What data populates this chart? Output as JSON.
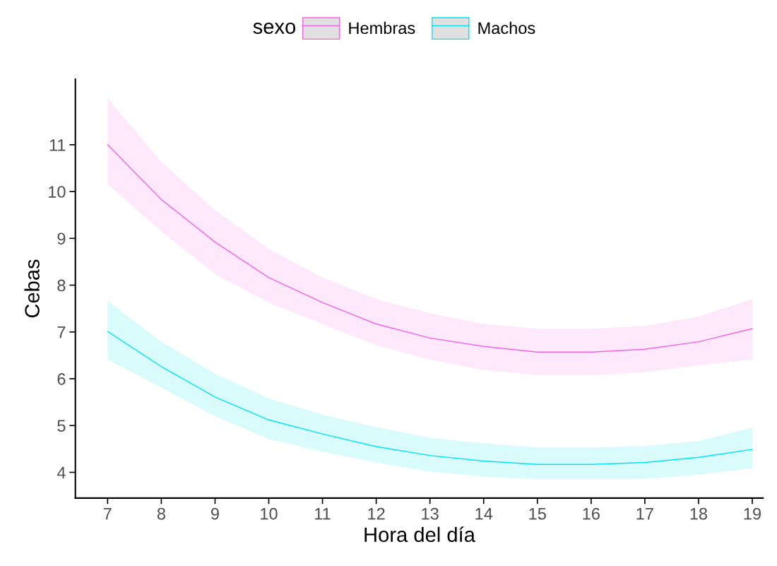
{
  "chart_data": {
    "type": "line",
    "xlabel": "Hora del día",
    "ylabel": "Cebas",
    "legend_title": "sexo",
    "legend": "top",
    "grid": false,
    "x": [
      7,
      8,
      9,
      10,
      11,
      12,
      13,
      14,
      15,
      16,
      17,
      18,
      19
    ],
    "xlim": [
      6.4,
      19.2
    ],
    "xticks": [
      7,
      8,
      9,
      10,
      11,
      12,
      13,
      14,
      15,
      16,
      17,
      18,
      19
    ],
    "ylim": [
      3.45,
      12.4
    ],
    "yticks": [
      4,
      5,
      6,
      7,
      8,
      9,
      10,
      11
    ],
    "series": [
      {
        "name": "Hembras",
        "color": "#f564e3",
        "values": [
          11.0,
          9.83,
          8.92,
          8.16,
          7.63,
          7.17,
          6.87,
          6.69,
          6.57,
          6.57,
          6.63,
          6.79,
          7.07
        ],
        "lower": [
          10.16,
          9.15,
          8.24,
          7.63,
          7.17,
          6.72,
          6.41,
          6.19,
          6.08,
          6.08,
          6.14,
          6.29,
          6.41
        ],
        "upper": [
          11.99,
          10.63,
          9.6,
          8.77,
          8.16,
          7.7,
          7.4,
          7.17,
          7.07,
          7.07,
          7.13,
          7.33,
          7.7
        ]
      },
      {
        "name": "Machos",
        "color": "#00e5ee",
        "values": [
          7.01,
          6.26,
          5.61,
          5.12,
          4.82,
          4.55,
          4.36,
          4.24,
          4.17,
          4.17,
          4.21,
          4.32,
          4.49
        ],
        "lower": [
          6.41,
          5.81,
          5.2,
          4.71,
          4.44,
          4.21,
          4.02,
          3.91,
          3.86,
          3.86,
          3.86,
          3.95,
          4.09
        ],
        "upper": [
          7.67,
          6.79,
          6.11,
          5.58,
          5.23,
          4.97,
          4.74,
          4.62,
          4.53,
          4.53,
          4.56,
          4.67,
          4.96
        ]
      }
    ]
  }
}
